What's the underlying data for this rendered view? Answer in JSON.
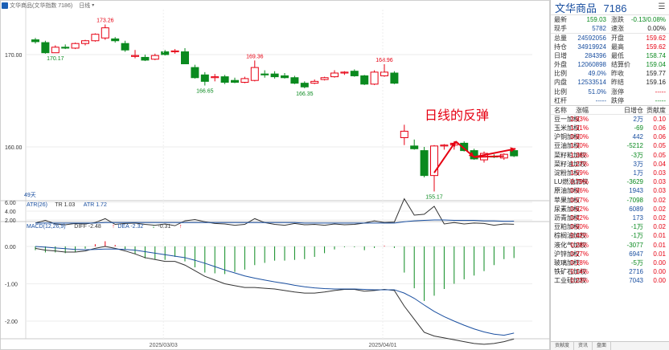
{
  "window": {
    "title_text": "文华商品(文华指数 7186)",
    "period": "日线"
  },
  "main_chart": {
    "price_ticks": [
      "170.00",
      "160.00"
    ],
    "date_labels": [
      "2025/03/03",
      "2025/04/01"
    ],
    "count_label": "49天",
    "annotations": [
      {
        "text": "173.26"
      },
      {
        "text": "170.17"
      },
      {
        "text": "169.36"
      },
      {
        "text": "168.96"
      },
      {
        "text": "166.65"
      },
      {
        "text": "166.35"
      },
      {
        "text": "155.17"
      }
    ],
    "rebound_caption": "日线的反弹",
    "colors": {
      "up": "#e60012",
      "down": "#0a8a1f",
      "caption": "#e60012"
    }
  },
  "chart_data": [
    {
      "type": "candlestick",
      "title": "文华商品(文华指数 7186)",
      "note": "OHLC values estimated from the price axis",
      "candles": [
        {
          "o": 171.6,
          "h": 171.8,
          "l": 171.2,
          "c": 171.4
        },
        {
          "o": 171.3,
          "h": 171.5,
          "l": 170.1,
          "c": 170.2
        },
        {
          "o": 170.2,
          "h": 171.0,
          "l": 170.17,
          "c": 170.8
        },
        {
          "o": 170.8,
          "h": 171.1,
          "l": 170.6,
          "c": 170.7
        },
        {
          "o": 170.7,
          "h": 171.3,
          "l": 170.6,
          "c": 171.2
        },
        {
          "o": 171.2,
          "h": 171.6,
          "l": 171.0,
          "c": 171.5
        },
        {
          "o": 171.5,
          "h": 172.3,
          "l": 171.4,
          "c": 172.2
        },
        {
          "o": 171.8,
          "h": 173.26,
          "l": 171.6,
          "c": 172.9
        },
        {
          "o": 171.7,
          "h": 171.9,
          "l": 171.3,
          "c": 171.5
        },
        {
          "o": 171.2,
          "h": 171.5,
          "l": 170.3,
          "c": 170.5
        },
        {
          "o": 169.8,
          "h": 170.5,
          "l": 169.6,
          "c": 169.9
        },
        {
          "o": 169.7,
          "h": 170.0,
          "l": 169.3,
          "c": 169.4
        },
        {
          "o": 169.5,
          "h": 170.1,
          "l": 169.4,
          "c": 169.9
        },
        {
          "o": 170.3,
          "h": 170.5,
          "l": 169.9,
          "c": 170.0
        },
        {
          "o": 170.3,
          "h": 170.6,
          "l": 170.1,
          "c": 170.4
        },
        {
          "o": 170.3,
          "h": 170.7,
          "l": 169.0,
          "c": 169.0
        },
        {
          "o": 168.6,
          "h": 168.9,
          "l": 167.4,
          "c": 167.5
        },
        {
          "o": 167.8,
          "h": 168.1,
          "l": 166.65,
          "c": 167.1
        },
        {
          "o": 167.5,
          "h": 167.9,
          "l": 167.1,
          "c": 167.6
        },
        {
          "o": 167.6,
          "h": 167.8,
          "l": 166.8,
          "c": 167.0
        },
        {
          "o": 167.2,
          "h": 167.5,
          "l": 166.9,
          "c": 167.0
        },
        {
          "o": 167.0,
          "h": 167.6,
          "l": 166.9,
          "c": 167.4
        },
        {
          "o": 167.2,
          "h": 169.36,
          "l": 167.1,
          "c": 168.6
        },
        {
          "o": 167.9,
          "h": 168.3,
          "l": 167.5,
          "c": 167.8
        },
        {
          "o": 167.9,
          "h": 168.2,
          "l": 167.4,
          "c": 167.6
        },
        {
          "o": 167.7,
          "h": 168.0,
          "l": 167.4,
          "c": 167.5
        },
        {
          "o": 167.5,
          "h": 167.7,
          "l": 166.8,
          "c": 166.9
        },
        {
          "o": 166.9,
          "h": 167.1,
          "l": 166.35,
          "c": 166.5
        },
        {
          "o": 166.9,
          "h": 167.3,
          "l": 166.8,
          "c": 167.1
        },
        {
          "o": 167.3,
          "h": 167.6,
          "l": 167.2,
          "c": 167.5
        },
        {
          "o": 167.6,
          "h": 168.3,
          "l": 167.5,
          "c": 168.0
        },
        {
          "o": 168.0,
          "h": 168.2,
          "l": 167.8,
          "c": 168.1
        },
        {
          "o": 168.2,
          "h": 168.4,
          "l": 167.6,
          "c": 167.7
        },
        {
          "o": 167.7,
          "h": 167.8,
          "l": 166.7,
          "c": 166.8
        },
        {
          "o": 166.8,
          "h": 168.3,
          "l": 166.7,
          "c": 168.1
        },
        {
          "o": 167.7,
          "h": 168.96,
          "l": 167.6,
          "c": 168.1
        },
        {
          "o": 168.0,
          "h": 168.2,
          "l": 166.8,
          "c": 166.9
        },
        {
          "o": 161.0,
          "h": 162.4,
          "l": 160.2,
          "c": 161.7
        },
        {
          "o": 160.1,
          "h": 160.8,
          "l": 159.7,
          "c": 159.8
        },
        {
          "o": 159.6,
          "h": 160.0,
          "l": 156.7,
          "c": 156.9
        },
        {
          "o": 156.9,
          "h": 160.2,
          "l": 155.17,
          "c": 160.1
        },
        {
          "o": 160.1,
          "h": 160.3,
          "l": 159.7,
          "c": 160.2
        },
        {
          "o": 160.2,
          "h": 160.6,
          "l": 159.7,
          "c": 160.4
        },
        {
          "o": 160.4,
          "h": 160.6,
          "l": 159.5,
          "c": 159.6
        },
        {
          "o": 159.6,
          "h": 159.8,
          "l": 158.6,
          "c": 158.7
        },
        {
          "o": 158.6,
          "h": 159.5,
          "l": 158.3,
          "c": 159.3
        },
        {
          "o": 159.0,
          "h": 159.2,
          "l": 158.8,
          "c": 158.9
        },
        {
          "o": 158.8,
          "h": 159.3,
          "l": 158.6,
          "c": 159.2
        },
        {
          "o": 159.6,
          "h": 159.8,
          "l": 158.9,
          "c": 159.03
        }
      ]
    },
    {
      "type": "line",
      "title": "ATR(26)",
      "yticks": [
        "6.00",
        "4.00",
        "2.00"
      ],
      "legend": [
        {
          "text": "ATR(26)",
          "color": "#1a4fa0"
        },
        {
          "text": "TR 1.03",
          "color": "#333333"
        },
        {
          "text": "ATR 1.72",
          "color": "#1a4fa0"
        }
      ],
      "series": [
        {
          "name": "TR",
          "color": "#333333",
          "values": [
            1.3,
            1.9,
            1.1,
            0.9,
            1.2,
            1.1,
            1.4,
            2.3,
            1.0,
            1.2,
            1.3,
            1.0,
            0.8,
            1.1,
            0.7,
            1.8,
            2.1,
            1.6,
            1.2,
            1.1,
            0.8,
            1.0,
            2.3,
            1.4,
            1.0,
            0.8,
            1.2,
            0.9,
            1.0,
            0.8,
            1.1,
            0.9,
            1.0,
            1.3,
            1.8,
            1.4,
            1.5,
            6.8,
            3.1,
            3.3,
            5.1,
            1.1,
            1.4,
            1.1,
            1.3,
            1.2,
            0.8,
            1.1,
            1.03
          ]
        },
        {
          "name": "ATR",
          "color": "#1a4fa0",
          "values": [
            1.3,
            1.3,
            1.3,
            1.3,
            1.3,
            1.3,
            1.3,
            1.4,
            1.4,
            1.4,
            1.4,
            1.4,
            1.4,
            1.4,
            1.4,
            1.4,
            1.4,
            1.4,
            1.4,
            1.4,
            1.4,
            1.4,
            1.4,
            1.4,
            1.4,
            1.4,
            1.4,
            1.3,
            1.3,
            1.3,
            1.3,
            1.3,
            1.3,
            1.3,
            1.3,
            1.3,
            1.3,
            1.6,
            1.8,
            1.9,
            2.0,
            2.0,
            1.9,
            1.9,
            1.9,
            1.8,
            1.8,
            1.7,
            1.72
          ]
        }
      ]
    },
    {
      "type": "bar+line",
      "title": "MACD(12,26,9)",
      "yticks": [
        "0.00",
        "-1.00",
        "-2.00"
      ],
      "legend": [
        {
          "text": "MACD(12,26,9)",
          "color": "#1a4fa0"
        },
        {
          "text": "DIFF -2.48",
          "color": "#333333"
        },
        {
          "text": "↑",
          "color": "#e60012"
        },
        {
          "text": "DEA -2.32",
          "color": "#1a4fa0"
        },
        {
          "text": "↓",
          "color": "#0a8a1f"
        },
        {
          "text": "-0.31",
          "color": "#333333"
        },
        {
          "text": "↑",
          "color": "#e60012"
        }
      ],
      "series": [
        {
          "name": "DIFF",
          "color": "#333333",
          "values": [
            -0.05,
            -0.1,
            -0.12,
            -0.15,
            -0.15,
            -0.12,
            -0.05,
            0.0,
            -0.05,
            -0.12,
            -0.2,
            -0.3,
            -0.35,
            -0.4,
            -0.4,
            -0.5,
            -0.65,
            -0.8,
            -0.9,
            -1.0,
            -1.05,
            -1.1,
            -1.1,
            -1.12,
            -1.14,
            -1.18,
            -1.22,
            -1.25,
            -1.25,
            -1.22,
            -1.18,
            -1.15,
            -1.15,
            -1.2,
            -1.18,
            -1.15,
            -1.18,
            -1.6,
            -1.95,
            -2.3,
            -2.4,
            -2.45,
            -2.5,
            -2.55,
            -2.6,
            -2.62,
            -2.6,
            -2.55,
            -2.48
          ]
        },
        {
          "name": "DEA",
          "color": "#1a4fa0",
          "values": [
            0.0,
            -0.02,
            -0.04,
            -0.06,
            -0.08,
            -0.09,
            -0.08,
            -0.07,
            -0.07,
            -0.08,
            -0.1,
            -0.14,
            -0.18,
            -0.22,
            -0.26,
            -0.3,
            -0.37,
            -0.45,
            -0.54,
            -0.63,
            -0.71,
            -0.79,
            -0.85,
            -0.9,
            -0.95,
            -0.99,
            -1.04,
            -1.08,
            -1.11,
            -1.13,
            -1.14,
            -1.14,
            -1.14,
            -1.15,
            -1.16,
            -1.16,
            -1.16,
            -1.25,
            -1.39,
            -1.57,
            -1.74,
            -1.88,
            -2.0,
            -2.11,
            -2.21,
            -2.29,
            -2.35,
            -2.38,
            -2.32
          ]
        },
        {
          "name": "MACD",
          "values": [
            -0.1,
            -0.16,
            -0.16,
            -0.18,
            -0.14,
            -0.06,
            0.06,
            0.14,
            0.04,
            -0.08,
            -0.2,
            -0.32,
            -0.34,
            -0.36,
            -0.28,
            -0.4,
            -0.56,
            -0.7,
            -0.72,
            -0.74,
            -0.68,
            -0.62,
            -0.5,
            -0.44,
            -0.38,
            -0.38,
            -0.36,
            -0.34,
            -0.28,
            -0.18,
            -0.08,
            -0.02,
            -0.02,
            -0.1,
            -0.04,
            0.02,
            -0.04,
            -0.7,
            -1.12,
            -1.46,
            -1.32,
            -1.14,
            -1.0,
            -0.88,
            -0.78,
            -0.66,
            -0.5,
            -0.34,
            -0.31
          ]
        }
      ]
    }
  ],
  "panel": {
    "title": "文华商品",
    "code": "7186",
    "menu_icon": "hamburger-icon",
    "quote": [
      {
        "l1": "最新",
        "v1": "159.03",
        "c1": "green",
        "l2": "涨跌",
        "v2": "-0.13/0.08%",
        "c2": "green",
        "sep": false
      },
      {
        "l1": "现手",
        "v1": "5782",
        "c1": "blue",
        "l2": "速涨",
        "v2": "0.00%",
        "c2": "black",
        "sep": false
      },
      {
        "l1": "总量",
        "v1": "24592056",
        "c1": "blue",
        "l2": "开盘",
        "v2": "159.62",
        "c2": "red",
        "sep": true
      },
      {
        "l1": "持仓",
        "v1": "34919924",
        "c1": "blue",
        "l2": "最高",
        "v2": "159.62",
        "c2": "red",
        "sep": false
      },
      {
        "l1": "日增",
        "v1": "284396",
        "c1": "blue",
        "l2": "最低",
        "v2": "158.74",
        "c2": "green",
        "sep": false
      },
      {
        "l1": "外盘",
        "v1": "12060898",
        "c1": "blue",
        "l2": "结算价",
        "v2": "159.04",
        "c2": "green",
        "sep": false
      },
      {
        "l1": "比例",
        "v1": "49.0%",
        "c1": "blue",
        "l2": "昨收",
        "v2": "159.77",
        "c2": "black",
        "sep": false
      },
      {
        "l1": "内盘",
        "v1": "12533514",
        "c1": "blue",
        "l2": "昨结",
        "v2": "159.16",
        "c2": "black",
        "sep": false
      },
      {
        "l1": "比例",
        "v1": "51.0%",
        "c1": "blue",
        "l2": "涨停",
        "v2": "-----",
        "c2": "red",
        "sep": false
      },
      {
        "l1": "杠杆",
        "v1": "-----",
        "c1": "blue",
        "l2": "跌停",
        "v2": "-----",
        "c2": "green",
        "sep": false
      }
    ],
    "sector_headers": [
      "名称",
      "涨幅",
      "日增仓",
      "贡献度"
    ],
    "sectors": [
      {
        "name": "豆一加权",
        "chg": "2.83%",
        "inc": "2万",
        "con": "0.10"
      },
      {
        "name": "玉米加权",
        "chg": "1.31%",
        "inc": "-69",
        "con": "0.06"
      },
      {
        "name": "沪铜加权",
        "chg": "0.80%",
        "inc": "442",
        "con": "0.06"
      },
      {
        "name": "豆油加权",
        "chg": "1.30%",
        "inc": "-5212",
        "con": "0.05"
      },
      {
        "name": "菜籽粕加权",
        "chg": "1.36%",
        "inc": "-3万",
        "con": "0.05"
      },
      {
        "name": "菜籽油加权",
        "chg": "1.27%",
        "inc": "3万",
        "con": "0.04"
      },
      {
        "name": "淀粉加权",
        "chg": "1.59%",
        "inc": "1万",
        "con": "0.03"
      },
      {
        "name": "LU燃油加权",
        "chg": "0.79%",
        "inc": "-3629",
        "con": "0.03"
      },
      {
        "name": "原油加权",
        "chg": "0.86%",
        "inc": "1943",
        "con": "0.03"
      },
      {
        "name": "苹果加权",
        "chg": "0.57%",
        "inc": "-7098",
        "con": "0.02"
      },
      {
        "name": "尿素加权",
        "chg": "0.62%",
        "inc": "6089",
        "con": "0.02"
      },
      {
        "name": "沥青加权",
        "chg": "0.42%",
        "inc": "173",
        "con": "0.02"
      },
      {
        "name": "豆粕加权",
        "chg": "0.60%",
        "inc": "-1万",
        "con": "0.02"
      },
      {
        "name": "棕榈油加权",
        "chg": "0.42%",
        "inc": "-1万",
        "con": "0.01"
      },
      {
        "name": "液化气加权",
        "chg": "0.28%",
        "inc": "-3077",
        "con": "0.01"
      },
      {
        "name": "沪锌加权",
        "chg": "0.27%",
        "inc": "6947",
        "con": "0.01"
      },
      {
        "name": "玻璃加权",
        "chg": "0.18%",
        "inc": "-5万",
        "con": "0.00"
      },
      {
        "name": "铁矿石加权",
        "chg": "0.14%",
        "inc": "2716",
        "con": "0.00"
      },
      {
        "name": "工业硅加权",
        "chg": "0.23%",
        "inc": "7043",
        "con": "0.00"
      }
    ],
    "tabs": [
      "贡献度",
      "资讯",
      "盘面"
    ]
  }
}
